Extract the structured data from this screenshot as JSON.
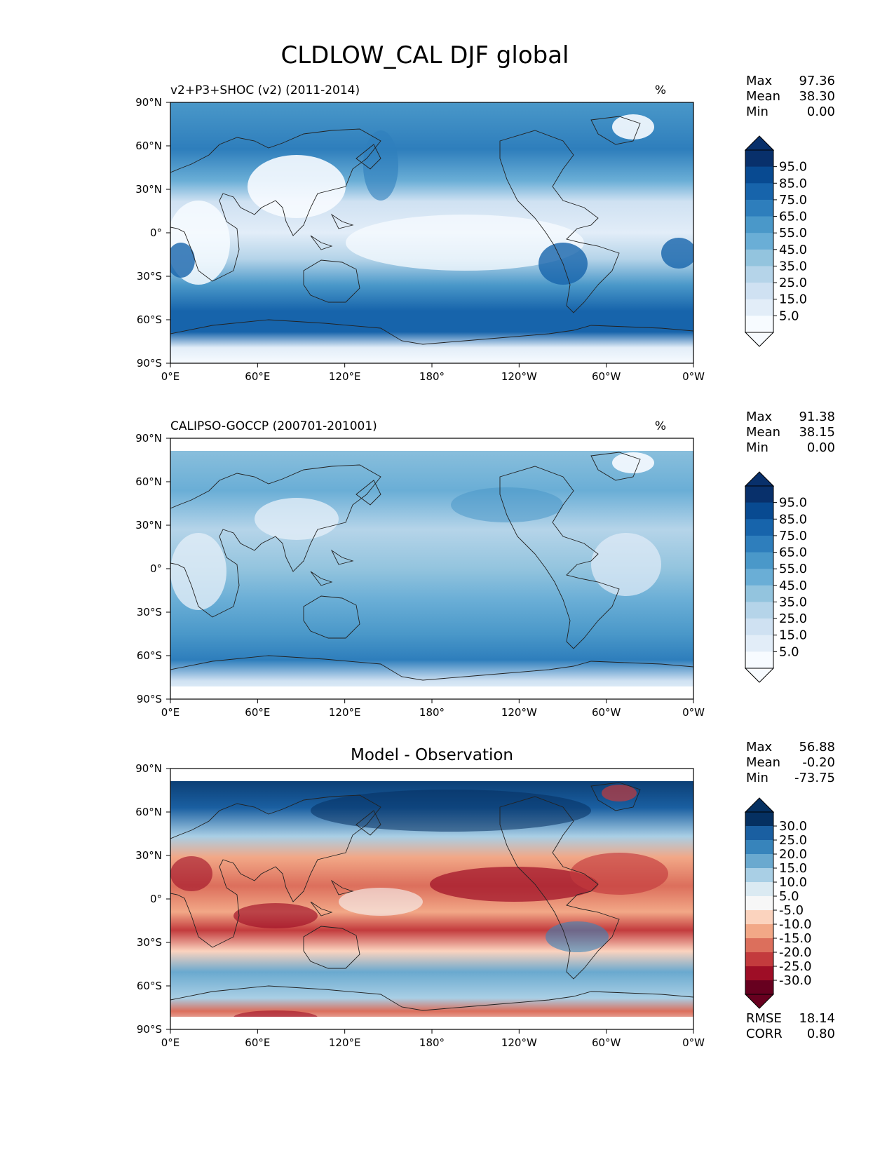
{
  "figure": {
    "title": "CLDLOW_CAL DJF global"
  },
  "x_ticks": [
    "0°E",
    "60°E",
    "120°E",
    "180°",
    "120°W",
    "60°W",
    "0°W"
  ],
  "y_ticks": [
    "90°N",
    "60°N",
    "30°N",
    "0°",
    "30°S",
    "60°S",
    "90°S"
  ],
  "chart_data": [
    {
      "type": "heatmap",
      "title_left": "v2+P3+SHOC (v2) (2011-2014)",
      "units": "%",
      "stats": [
        {
          "label": "Max",
          "value": "97.36"
        },
        {
          "label": "Mean",
          "value": "38.30"
        },
        {
          "label": "Min",
          "value": "0.00"
        }
      ],
      "colormap": "Blues",
      "colors": [
        "#f7fbff",
        "#e2edf8",
        "#cfe1f2",
        "#b5d4e9",
        "#93c4de",
        "#6aaed6",
        "#4a98c9",
        "#2e7ebc",
        "#1764ab",
        "#084a91",
        "#08306b"
      ],
      "colorbar_ticks": [
        "95.0",
        "85.0",
        "75.0",
        "65.0",
        "55.0",
        "45.0",
        "35.0",
        "25.0",
        "15.0",
        "5.0"
      ],
      "colorbar_tick_values": [
        95,
        85,
        75,
        65,
        55,
        45,
        35,
        25,
        15,
        5
      ],
      "levels": [
        0,
        5,
        15,
        25,
        35,
        45,
        55,
        65,
        75,
        85,
        95,
        100
      ],
      "x_range": [
        0,
        360
      ],
      "y_range": [
        -90,
        90
      ],
      "grid": false
    },
    {
      "type": "heatmap",
      "title_left": "CALIPSO-GOCCP (200701-201001)",
      "units": "%",
      "stats": [
        {
          "label": "Max",
          "value": "91.38"
        },
        {
          "label": "Mean",
          "value": "38.15"
        },
        {
          "label": "Min",
          "value": "0.00"
        }
      ],
      "colormap": "Blues",
      "colors": [
        "#f7fbff",
        "#e2edf8",
        "#cfe1f2",
        "#b5d4e9",
        "#93c4de",
        "#6aaed6",
        "#4a98c9",
        "#2e7ebc",
        "#1764ab",
        "#084a91",
        "#08306b"
      ],
      "colorbar_ticks": [
        "95.0",
        "85.0",
        "75.0",
        "65.0",
        "55.0",
        "45.0",
        "35.0",
        "25.0",
        "15.0",
        "5.0"
      ],
      "colorbar_tick_values": [
        95,
        85,
        75,
        65,
        55,
        45,
        35,
        25,
        15,
        5
      ],
      "levels": [
        0,
        5,
        15,
        25,
        35,
        45,
        55,
        65,
        75,
        85,
        95,
        100
      ],
      "x_range": [
        0,
        360
      ],
      "y_range": [
        -90,
        90
      ],
      "grid": false
    },
    {
      "type": "heatmap",
      "title_center": "Model - Observation",
      "stats": [
        {
          "label": "Max",
          "value": "56.88"
        },
        {
          "label": "Mean",
          "value": "-0.20"
        },
        {
          "label": "Min",
          "value": "-73.75"
        }
      ],
      "extra_stats": [
        {
          "label": "RMSE",
          "value": "18.14"
        },
        {
          "label": "CORR",
          "value": "0.80"
        }
      ],
      "colormap": "RdBu",
      "colors": [
        "#67001f",
        "#9e0e26",
        "#c33b3d",
        "#dc6f5c",
        "#f2a887",
        "#fbd3be",
        "#f7f7f7",
        "#dbeaf2",
        "#a9cfe5",
        "#6aa9cf",
        "#3784bb",
        "#1a5fa1",
        "#053061"
      ],
      "colorbar_ticks": [
        "30.0",
        "25.0",
        "20.0",
        "15.0",
        "10.0",
        "5.0",
        "-5.0",
        "-10.0",
        "-15.0",
        "-20.0",
        "-25.0",
        "-30.0"
      ],
      "colorbar_tick_values": [
        30,
        25,
        20,
        15,
        10,
        5,
        -5,
        -10,
        -15,
        -20,
        -25,
        -30
      ],
      "levels": [
        -35,
        -30,
        -25,
        -20,
        -15,
        -10,
        -5,
        5,
        10,
        15,
        20,
        25,
        30,
        35
      ],
      "x_range": [
        0,
        360
      ],
      "y_range": [
        -90,
        90
      ],
      "grid": false
    }
  ]
}
